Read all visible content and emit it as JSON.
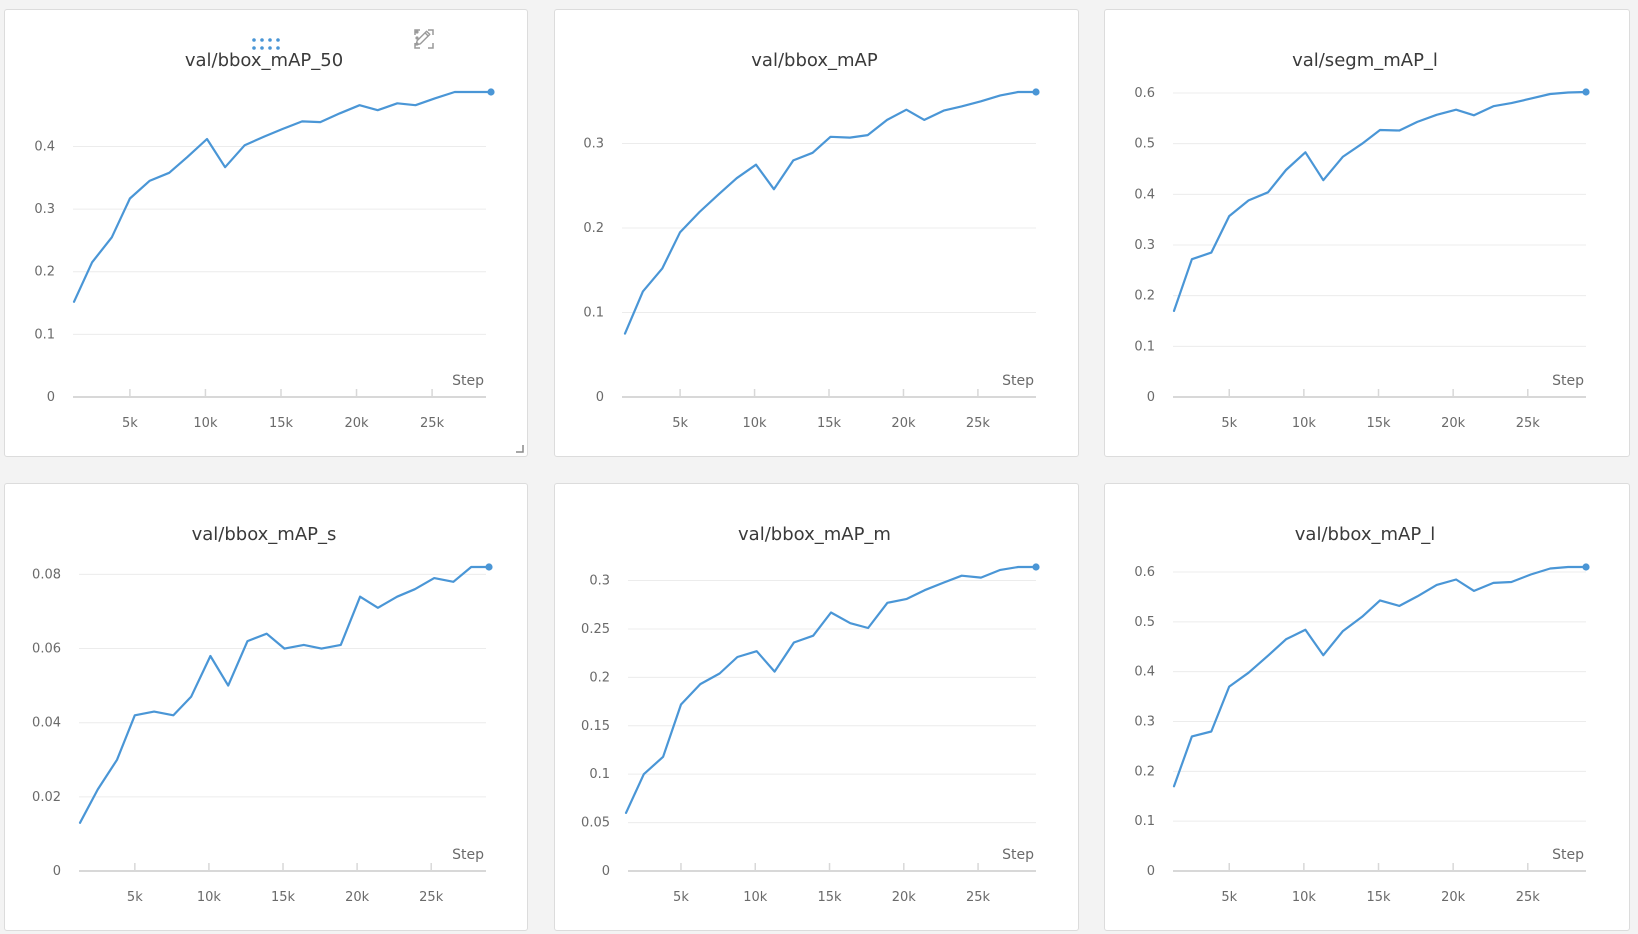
{
  "colors": {
    "line": "#4a96d6",
    "grid": "#ececec",
    "axis": "#d8d8d8",
    "text": "#6a6a6a",
    "title": "#3a3a3a"
  },
  "toolbar": {
    "drag_icon": "drag-dots-icon",
    "edit_icon": "pencil-icon",
    "fullscreen_icon": "fullscreen-icon",
    "menu_icon": "more-vertical-icon"
  },
  "chart_data": [
    {
      "type": "line",
      "title": "val/bbox_mAP_50",
      "xlabel": "Step",
      "ylabel": "",
      "xticks": [
        5000,
        10000,
        15000,
        20000,
        25000
      ],
      "xtick_labels": [
        "5k",
        "10k",
        "15k",
        "20k",
        "25k"
      ],
      "yticks": [
        0,
        0.1,
        0.2,
        0.3,
        0.4
      ],
      "ytick_labels": [
        "0",
        "0.1",
        "0.2",
        "0.3",
        "0.4"
      ],
      "xlim": [
        1300,
        28900
      ],
      "ylim": [
        0,
        0.487
      ],
      "series": [
        {
          "name": "val/bbox_mAP_50",
          "x": [
            1300,
            2500,
            3800,
            5000,
            6300,
            7600,
            8800,
            10100,
            11300,
            12600,
            13900,
            15100,
            16400,
            17600,
            18900,
            20200,
            21400,
            22700,
            23900,
            25200,
            26500,
            27700,
            28900
          ],
          "y": [
            0.152,
            0.215,
            0.255,
            0.317,
            0.345,
            0.358,
            0.383,
            0.412,
            0.367,
            0.402,
            0.416,
            0.428,
            0.44,
            0.439,
            0.453,
            0.466,
            0.458,
            0.469,
            0.466,
            0.477,
            0.487,
            0.487,
            0.487
          ]
        }
      ]
    },
    {
      "type": "line",
      "title": "val/bbox_mAP",
      "xlabel": "Step",
      "ylabel": "",
      "xticks": [
        5000,
        10000,
        15000,
        20000,
        25000
      ],
      "xtick_labels": [
        "5k",
        "10k",
        "15k",
        "20k",
        "25k"
      ],
      "yticks": [
        0,
        0.1,
        0.2,
        0.3
      ],
      "ytick_labels": [
        "0",
        "0.1",
        "0.2",
        "0.3"
      ],
      "xlim": [
        1300,
        28900
      ],
      "ylim": [
        0,
        0.361
      ],
      "series": [
        {
          "name": "val/bbox_mAP",
          "x": [
            1300,
            2500,
            3800,
            5000,
            6300,
            7600,
            8800,
            10100,
            11300,
            12600,
            13900,
            15100,
            16400,
            17600,
            18900,
            20200,
            21400,
            22700,
            23900,
            25200,
            26500,
            27700,
            28900
          ],
          "y": [
            0.075,
            0.125,
            0.152,
            0.195,
            0.219,
            0.24,
            0.259,
            0.275,
            0.246,
            0.28,
            0.289,
            0.308,
            0.307,
            0.31,
            0.328,
            0.34,
            0.328,
            0.339,
            0.344,
            0.35,
            0.357,
            0.361,
            0.361
          ]
        }
      ]
    },
    {
      "type": "line",
      "title": "val/segm_mAP_l",
      "xlabel": "Step",
      "ylabel": "",
      "xticks": [
        5000,
        10000,
        15000,
        20000,
        25000
      ],
      "xtick_labels": [
        "5k",
        "10k",
        "15k",
        "20k",
        "25k"
      ],
      "yticks": [
        0,
        0.1,
        0.2,
        0.3,
        0.4,
        0.5,
        0.6
      ],
      "ytick_labels": [
        "0",
        "0.1",
        "0.2",
        "0.3",
        "0.4",
        "0.5",
        "0.6"
      ],
      "xlim": [
        1300,
        28900
      ],
      "ylim": [
        0,
        0.602
      ],
      "series": [
        {
          "name": "val/segm_mAP_l",
          "x": [
            1300,
            2500,
            3800,
            5000,
            6300,
            7600,
            8800,
            10100,
            11300,
            12600,
            13900,
            15100,
            16400,
            17600,
            18900,
            20200,
            21400,
            22700,
            23900,
            25200,
            26500,
            27700,
            28900
          ],
          "y": [
            0.17,
            0.272,
            0.285,
            0.357,
            0.388,
            0.404,
            0.448,
            0.483,
            0.428,
            0.474,
            0.5,
            0.527,
            0.526,
            0.543,
            0.557,
            0.567,
            0.556,
            0.574,
            0.58,
            0.589,
            0.598,
            0.601,
            0.602
          ]
        }
      ]
    },
    {
      "type": "line",
      "title": "val/bbox_mAP_s",
      "xlabel": "Step",
      "ylabel": "",
      "xticks": [
        5000,
        10000,
        15000,
        20000,
        25000
      ],
      "xtick_labels": [
        "5k",
        "10k",
        "15k",
        "20k",
        "25k"
      ],
      "yticks": [
        0,
        0.02,
        0.04,
        0.06,
        0.08
      ],
      "ytick_labels": [
        "0",
        "0.02",
        "0.04",
        "0.06",
        "0.08"
      ],
      "xlim": [
        1300,
        28900
      ],
      "ylim": [
        0,
        0.082
      ],
      "series": [
        {
          "name": "val/bbox_mAP_s",
          "x": [
            1300,
            2500,
            3800,
            5000,
            6300,
            7600,
            8800,
            10100,
            11300,
            12600,
            13900,
            15100,
            16400,
            17600,
            18900,
            20200,
            21400,
            22700,
            23900,
            25200,
            26500,
            27700,
            28900
          ],
          "y": [
            0.013,
            0.022,
            0.03,
            0.042,
            0.043,
            0.042,
            0.047,
            0.058,
            0.05,
            0.062,
            0.064,
            0.06,
            0.061,
            0.06,
            0.061,
            0.074,
            0.071,
            0.074,
            0.076,
            0.079,
            0.078,
            0.082,
            0.082
          ]
        }
      ]
    },
    {
      "type": "line",
      "title": "val/bbox_mAP_m",
      "xlabel": "Step",
      "ylabel": "",
      "xticks": [
        5000,
        10000,
        15000,
        20000,
        25000
      ],
      "xtick_labels": [
        "5k",
        "10k",
        "15k",
        "20k",
        "25k"
      ],
      "yticks": [
        0,
        0.05,
        0.1,
        0.15,
        0.2,
        0.25,
        0.3
      ],
      "ytick_labels": [
        "0",
        "0.05",
        "0.1",
        "0.15",
        "0.2",
        "0.25",
        "0.3"
      ],
      "xlim": [
        1300,
        28900
      ],
      "ylim": [
        0,
        0.314
      ],
      "series": [
        {
          "name": "val/bbox_mAP_m",
          "x": [
            1300,
            2500,
            3800,
            5000,
            6300,
            7600,
            8800,
            10100,
            11300,
            12600,
            13900,
            15100,
            16400,
            17600,
            18900,
            20200,
            21400,
            22700,
            23900,
            25200,
            26500,
            27700,
            28900
          ],
          "y": [
            0.06,
            0.1,
            0.118,
            0.172,
            0.193,
            0.204,
            0.221,
            0.227,
            0.206,
            0.236,
            0.243,
            0.267,
            0.256,
            0.251,
            0.277,
            0.281,
            0.29,
            0.298,
            0.305,
            0.303,
            0.311,
            0.314,
            0.314
          ]
        }
      ]
    },
    {
      "type": "line",
      "title": "val/bbox_mAP_l",
      "xlabel": "Step",
      "ylabel": "",
      "xticks": [
        5000,
        10000,
        15000,
        20000,
        25000
      ],
      "xtick_labels": [
        "5k",
        "10k",
        "15k",
        "20k",
        "25k"
      ],
      "yticks": [
        0,
        0.1,
        0.2,
        0.3,
        0.4,
        0.5,
        0.6
      ],
      "ytick_labels": [
        "0",
        "0.1",
        "0.2",
        "0.3",
        "0.4",
        "0.5",
        "0.6"
      ],
      "xlim": [
        1300,
        28900
      ],
      "ylim": [
        0,
        0.61
      ],
      "series": [
        {
          "name": "val/bbox_mAP_l",
          "x": [
            1300,
            2500,
            3800,
            5000,
            6300,
            7600,
            8800,
            10100,
            11300,
            12600,
            13900,
            15100,
            16400,
            17600,
            18900,
            20200,
            21400,
            22700,
            23900,
            25200,
            26500,
            27700,
            28900
          ],
          "y": [
            0.17,
            0.27,
            0.28,
            0.37,
            0.398,
            0.432,
            0.465,
            0.484,
            0.433,
            0.481,
            0.51,
            0.543,
            0.532,
            0.551,
            0.574,
            0.585,
            0.562,
            0.578,
            0.58,
            0.595,
            0.607,
            0.61,
            0.61
          ]
        }
      ]
    }
  ]
}
